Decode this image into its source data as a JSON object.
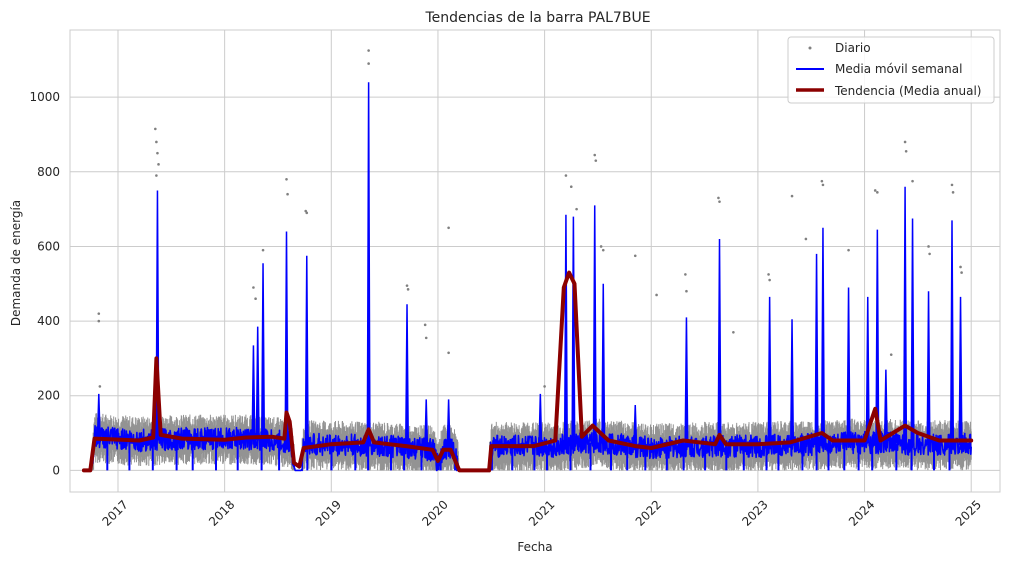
{
  "chart_data": {
    "type": "line",
    "title": "Tendencias de la barra PAL7BUE",
    "xlabel": "Fecha",
    "ylabel": "Demanda de energía",
    "x_ticks": [
      "2017",
      "2018",
      "2019",
      "2020",
      "2021",
      "2022",
      "2023",
      "2024",
      "2025"
    ],
    "y_ticks": [
      0,
      200,
      400,
      600,
      800,
      1000
    ],
    "xlim": [
      2016.55,
      2025.27
    ],
    "ylim": [
      -58,
      1180
    ],
    "grid": true,
    "legend": "top-right",
    "colors": {
      "daily": "#808080",
      "weekly": "#0000ff",
      "trend": "#8b0000",
      "grid": "#cccccc"
    },
    "series": [
      {
        "name": "Diario",
        "style": "scatter",
        "outliers": [
          {
            "x": 2016.82,
            "y": 420
          },
          {
            "x": 2016.82,
            "y": 400
          },
          {
            "x": 2016.83,
            "y": 225
          },
          {
            "x": 2017.35,
            "y": 915
          },
          {
            "x": 2017.36,
            "y": 880
          },
          {
            "x": 2017.37,
            "y": 850
          },
          {
            "x": 2017.38,
            "y": 820
          },
          {
            "x": 2017.36,
            "y": 790
          },
          {
            "x": 2018.27,
            "y": 490
          },
          {
            "x": 2018.29,
            "y": 460
          },
          {
            "x": 2018.36,
            "y": 590
          },
          {
            "x": 2018.58,
            "y": 780
          },
          {
            "x": 2018.59,
            "y": 740
          },
          {
            "x": 2018.76,
            "y": 695
          },
          {
            "x": 2018.77,
            "y": 690
          },
          {
            "x": 2019.35,
            "y": 1125
          },
          {
            "x": 2019.35,
            "y": 1090
          },
          {
            "x": 2019.71,
            "y": 495
          },
          {
            "x": 2019.72,
            "y": 485
          },
          {
            "x": 2019.88,
            "y": 390
          },
          {
            "x": 2019.89,
            "y": 355
          },
          {
            "x": 2020.1,
            "y": 650
          },
          {
            "x": 2020.1,
            "y": 315
          },
          {
            "x": 2021.0,
            "y": 225
          },
          {
            "x": 2021.2,
            "y": 790
          },
          {
            "x": 2021.25,
            "y": 760
          },
          {
            "x": 2021.3,
            "y": 700
          },
          {
            "x": 2021.47,
            "y": 845
          },
          {
            "x": 2021.48,
            "y": 830
          },
          {
            "x": 2021.53,
            "y": 600
          },
          {
            "x": 2021.55,
            "y": 590
          },
          {
            "x": 2021.85,
            "y": 575
          },
          {
            "x": 2022.05,
            "y": 470
          },
          {
            "x": 2022.32,
            "y": 525
          },
          {
            "x": 2022.33,
            "y": 480
          },
          {
            "x": 2022.63,
            "y": 730
          },
          {
            "x": 2022.64,
            "y": 720
          },
          {
            "x": 2022.77,
            "y": 370
          },
          {
            "x": 2023.1,
            "y": 525
          },
          {
            "x": 2023.11,
            "y": 510
          },
          {
            "x": 2023.32,
            "y": 735
          },
          {
            "x": 2023.45,
            "y": 620
          },
          {
            "x": 2023.6,
            "y": 775
          },
          {
            "x": 2023.61,
            "y": 765
          },
          {
            "x": 2023.85,
            "y": 590
          },
          {
            "x": 2024.1,
            "y": 750
          },
          {
            "x": 2024.12,
            "y": 745
          },
          {
            "x": 2024.25,
            "y": 310
          },
          {
            "x": 2024.38,
            "y": 880
          },
          {
            "x": 2024.39,
            "y": 855
          },
          {
            "x": 2024.45,
            "y": 775
          },
          {
            "x": 2024.6,
            "y": 600
          },
          {
            "x": 2024.61,
            "y": 580
          },
          {
            "x": 2024.82,
            "y": 765
          },
          {
            "x": 2024.83,
            "y": 745
          },
          {
            "x": 2024.9,
            "y": 545
          },
          {
            "x": 2024.91,
            "y": 530
          }
        ]
      },
      {
        "name": "Media móvil semanal",
        "style": "line",
        "baseline": [
          {
            "x": 2016.68,
            "y": 0
          },
          {
            "x": 2016.75,
            "y": 0
          },
          {
            "x": 2016.78,
            "y": 90
          },
          {
            "x": 2017.2,
            "y": 80
          },
          {
            "x": 2017.6,
            "y": 85
          },
          {
            "x": 2018.2,
            "y": 85
          },
          {
            "x": 2018.62,
            "y": 75
          },
          {
            "x": 2018.66,
            "y": 0
          },
          {
            "x": 2018.72,
            "y": 0
          },
          {
            "x": 2018.74,
            "y": 70
          },
          {
            "x": 2019.5,
            "y": 65
          },
          {
            "x": 2019.95,
            "y": 55
          },
          {
            "x": 2020.0,
            "y": 15
          },
          {
            "x": 2020.05,
            "y": 60
          },
          {
            "x": 2020.15,
            "y": 55
          },
          {
            "x": 2020.2,
            "y": 0
          },
          {
            "x": 2020.48,
            "y": 0
          },
          {
            "x": 2020.5,
            "y": 65
          },
          {
            "x": 2021.1,
            "y": 65
          },
          {
            "x": 2021.5,
            "y": 75
          },
          {
            "x": 2022.0,
            "y": 60
          },
          {
            "x": 2022.5,
            "y": 65
          },
          {
            "x": 2023.0,
            "y": 65
          },
          {
            "x": 2023.5,
            "y": 70
          },
          {
            "x": 2024.0,
            "y": 75
          },
          {
            "x": 2024.5,
            "y": 70
          },
          {
            "x": 2025.0,
            "y": 70
          }
        ],
        "spikes": [
          {
            "x": 2016.82,
            "y": 205
          },
          {
            "x": 2017.37,
            "y": 750
          },
          {
            "x": 2018.27,
            "y": 335
          },
          {
            "x": 2018.31,
            "y": 385
          },
          {
            "x": 2018.36,
            "y": 555
          },
          {
            "x": 2018.58,
            "y": 640
          },
          {
            "x": 2018.77,
            "y": 575
          },
          {
            "x": 2019.35,
            "y": 1040
          },
          {
            "x": 2019.71,
            "y": 445
          },
          {
            "x": 2019.89,
            "y": 190
          },
          {
            "x": 2020.1,
            "y": 190
          },
          {
            "x": 2020.96,
            "y": 205
          },
          {
            "x": 2021.2,
            "y": 685
          },
          {
            "x": 2021.27,
            "y": 680
          },
          {
            "x": 2021.47,
            "y": 710
          },
          {
            "x": 2021.55,
            "y": 500
          },
          {
            "x": 2021.85,
            "y": 175
          },
          {
            "x": 2022.33,
            "y": 410
          },
          {
            "x": 2022.64,
            "y": 620
          },
          {
            "x": 2023.11,
            "y": 465
          },
          {
            "x": 2023.32,
            "y": 405
          },
          {
            "x": 2023.55,
            "y": 580
          },
          {
            "x": 2023.61,
            "y": 650
          },
          {
            "x": 2023.85,
            "y": 490
          },
          {
            "x": 2024.03,
            "y": 465
          },
          {
            "x": 2024.12,
            "y": 645
          },
          {
            "x": 2024.2,
            "y": 270
          },
          {
            "x": 2024.38,
            "y": 760
          },
          {
            "x": 2024.45,
            "y": 675
          },
          {
            "x": 2024.6,
            "y": 480
          },
          {
            "x": 2024.82,
            "y": 670
          },
          {
            "x": 2024.9,
            "y": 465
          }
        ]
      },
      {
        "name": "Tendencia (Media anual)",
        "style": "line",
        "points": [
          {
            "x": 2016.68,
            "y": 0
          },
          {
            "x": 2016.74,
            "y": 0
          },
          {
            "x": 2016.78,
            "y": 85
          },
          {
            "x": 2017.2,
            "y": 80
          },
          {
            "x": 2017.33,
            "y": 88
          },
          {
            "x": 2017.36,
            "y": 300
          },
          {
            "x": 2017.4,
            "y": 95
          },
          {
            "x": 2017.6,
            "y": 85
          },
          {
            "x": 2018.0,
            "y": 82
          },
          {
            "x": 2018.2,
            "y": 88
          },
          {
            "x": 2018.45,
            "y": 90
          },
          {
            "x": 2018.56,
            "y": 85
          },
          {
            "x": 2018.58,
            "y": 155
          },
          {
            "x": 2018.61,
            "y": 130
          },
          {
            "x": 2018.65,
            "y": 20
          },
          {
            "x": 2018.7,
            "y": 10
          },
          {
            "x": 2018.74,
            "y": 60
          },
          {
            "x": 2019.0,
            "y": 70
          },
          {
            "x": 2019.3,
            "y": 75
          },
          {
            "x": 2019.35,
            "y": 110
          },
          {
            "x": 2019.4,
            "y": 75
          },
          {
            "x": 2019.7,
            "y": 65
          },
          {
            "x": 2019.95,
            "y": 55
          },
          {
            "x": 2020.0,
            "y": 25
          },
          {
            "x": 2020.05,
            "y": 55
          },
          {
            "x": 2020.12,
            "y": 55
          },
          {
            "x": 2020.2,
            "y": 0
          },
          {
            "x": 2020.48,
            "y": 0
          },
          {
            "x": 2020.5,
            "y": 65
          },
          {
            "x": 2020.9,
            "y": 65
          },
          {
            "x": 2021.1,
            "y": 80
          },
          {
            "x": 2021.18,
            "y": 490
          },
          {
            "x": 2021.23,
            "y": 530
          },
          {
            "x": 2021.28,
            "y": 500
          },
          {
            "x": 2021.35,
            "y": 90
          },
          {
            "x": 2021.45,
            "y": 120
          },
          {
            "x": 2021.6,
            "y": 80
          },
          {
            "x": 2021.85,
            "y": 65
          },
          {
            "x": 2022.0,
            "y": 60
          },
          {
            "x": 2022.3,
            "y": 80
          },
          {
            "x": 2022.6,
            "y": 70
          },
          {
            "x": 2022.64,
            "y": 95
          },
          {
            "x": 2022.7,
            "y": 70
          },
          {
            "x": 2023.0,
            "y": 70
          },
          {
            "x": 2023.3,
            "y": 75
          },
          {
            "x": 2023.6,
            "y": 100
          },
          {
            "x": 2023.7,
            "y": 80
          },
          {
            "x": 2024.0,
            "y": 80
          },
          {
            "x": 2024.1,
            "y": 165
          },
          {
            "x": 2024.15,
            "y": 80
          },
          {
            "x": 2024.38,
            "y": 120
          },
          {
            "x": 2024.5,
            "y": 100
          },
          {
            "x": 2024.7,
            "y": 80
          },
          {
            "x": 2025.0,
            "y": 80
          }
        ]
      }
    ]
  }
}
